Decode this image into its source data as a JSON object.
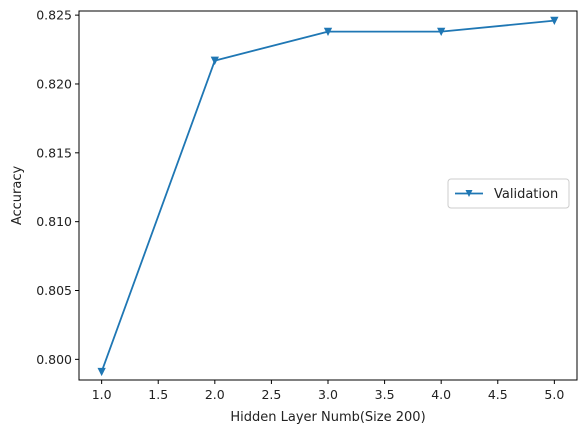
{
  "chart_data": {
    "type": "line",
    "title": "",
    "xlabel": "Hidden Layer Numb(Size 200)",
    "ylabel": "Accuracy",
    "xlim": [
      0.8,
      5.2
    ],
    "ylim": [
      0.7985,
      0.8253
    ],
    "x_ticks": [
      1.0,
      1.5,
      2.0,
      2.5,
      3.0,
      3.5,
      4.0,
      4.5,
      5.0
    ],
    "x_tick_labels": [
      "1.0",
      "1.5",
      "2.0",
      "2.5",
      "3.0",
      "3.5",
      "4.0",
      "4.5",
      "5.0"
    ],
    "y_ticks": [
      0.8,
      0.805,
      0.81,
      0.815,
      0.82,
      0.825
    ],
    "y_tick_labels": [
      "0.800",
      "0.805",
      "0.810",
      "0.815",
      "0.820",
      "0.825"
    ],
    "grid": false,
    "legend_position": "center-right",
    "series": [
      {
        "name": "Validation",
        "color": "#1f77b4",
        "marker": "triangle-down",
        "x": [
          1,
          2,
          3,
          4,
          5
        ],
        "y": [
          0.7991,
          0.8217,
          0.8238,
          0.8238,
          0.8246
        ]
      }
    ]
  }
}
